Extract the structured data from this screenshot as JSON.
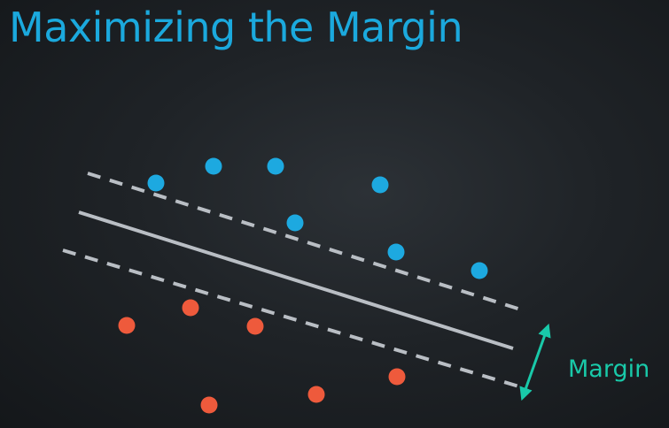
{
  "slide": {
    "title": "Maximizing the Margin"
  },
  "diagram": {
    "margin_label": "Margin",
    "colors": {
      "class_a": "#1da9e0",
      "class_b": "#ee5a3c",
      "decision_line": "#b9bec4",
      "margin_lines": "#b9bec4",
      "margin_arrow": "#19c9a9"
    }
  }
}
